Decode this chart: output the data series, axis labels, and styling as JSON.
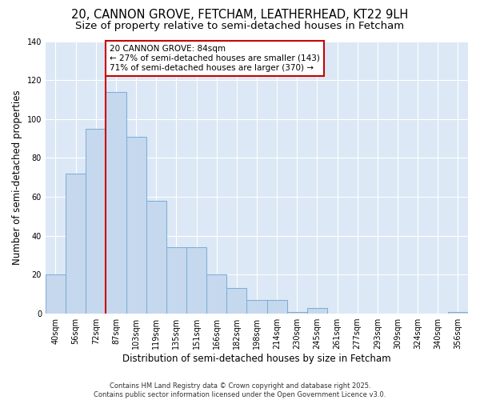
{
  "title": "20, CANNON GROVE, FETCHAM, LEATHERHEAD, KT22 9LH",
  "subtitle": "Size of property relative to semi-detached houses in Fetcham",
  "xlabel": "Distribution of semi-detached houses by size in Fetcham",
  "ylabel": "Number of semi-detached properties",
  "categories": [
    "40sqm",
    "56sqm",
    "72sqm",
    "87sqm",
    "103sqm",
    "119sqm",
    "135sqm",
    "151sqm",
    "166sqm",
    "182sqm",
    "198sqm",
    "214sqm",
    "230sqm",
    "245sqm",
    "261sqm",
    "277sqm",
    "293sqm",
    "309sqm",
    "324sqm",
    "340sqm",
    "356sqm"
  ],
  "values": [
    20,
    72,
    95,
    114,
    91,
    58,
    34,
    34,
    20,
    13,
    7,
    7,
    1,
    3,
    0,
    0,
    0,
    0,
    0,
    0,
    1
  ],
  "bar_color": "#c5d8ee",
  "bar_edge_color": "#7aadd4",
  "vline_color": "#cc0000",
  "vline_x": 2.5,
  "annotation_text": "20 CANNON GROVE: 84sqm\n← 27% of semi-detached houses are smaller (143)\n71% of semi-detached houses are larger (370) →",
  "annotation_box_color": "#ffffff",
  "annotation_box_edge": "#cc0000",
  "ylim": [
    0,
    140
  ],
  "yticks": [
    0,
    20,
    40,
    60,
    80,
    100,
    120,
    140
  ],
  "background_color": "#dce8f5",
  "grid_color": "#ffffff",
  "footer_line1": "Contains HM Land Registry data © Crown copyright and database right 2025.",
  "footer_line2": "Contains public sector information licensed under the Open Government Licence v3.0.",
  "title_fontsize": 10.5,
  "subtitle_fontsize": 9.5,
  "ylabel_fontsize": 8.5,
  "xlabel_fontsize": 8.5,
  "tick_fontsize": 7,
  "annotation_fontsize": 7.5,
  "footer_fontsize": 6
}
